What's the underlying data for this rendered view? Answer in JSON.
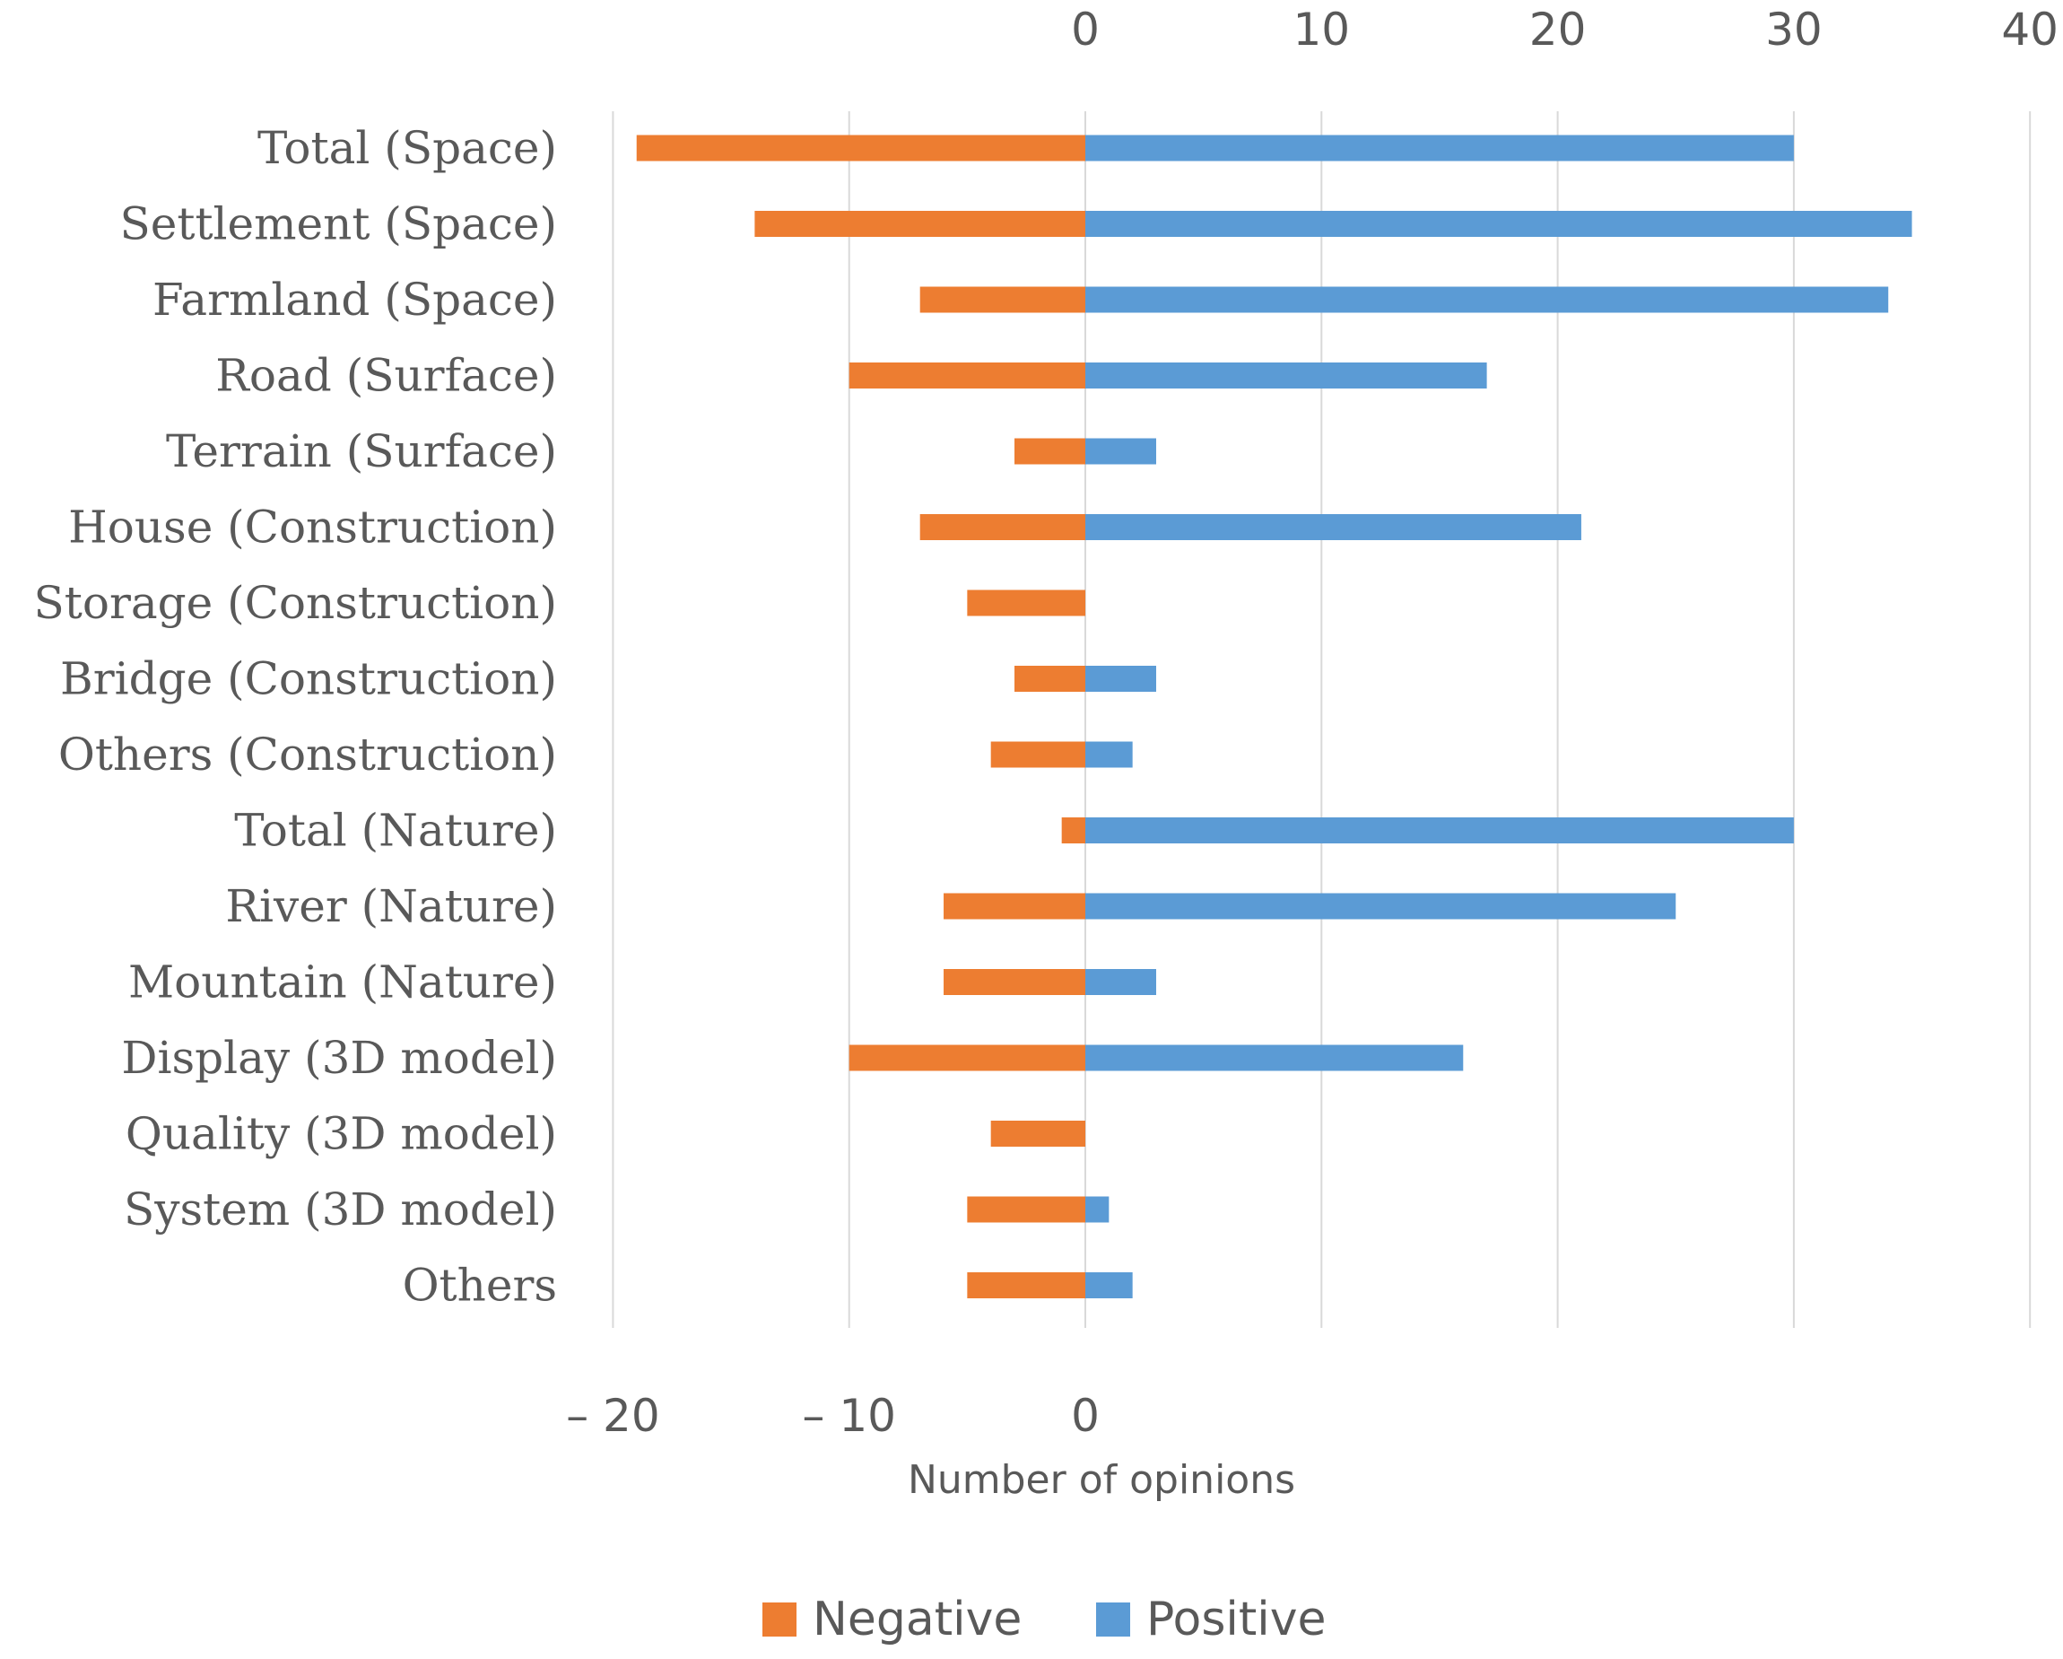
{
  "chart_data": {
    "type": "bar",
    "orientation": "horizontal",
    "stacked": "diverging",
    "title": "",
    "xlabel": "Number of opinions",
    "ylabel": "",
    "xlim": [
      -20,
      40
    ],
    "grid": true,
    "top_ticks": [
      "0",
      "10",
      "20",
      "30",
      "40"
    ],
    "top_tick_values": [
      0,
      10,
      20,
      30,
      40
    ],
    "bottom_ticks": [
      "– 20",
      "– 10",
      "0"
    ],
    "bottom_tick_values": [
      -20,
      -10,
      0
    ],
    "categories": [
      "Total (Space)",
      "Settlement (Space)",
      "Farmland (Space)",
      "Road (Surface)",
      "Terrain (Surface)",
      "House (Construction)",
      "Storage (Construction)",
      "Bridge (Construction)",
      "Others (Construction)",
      "Total (Nature)",
      "River (Nature)",
      "Mountain (Nature)",
      "Display (3D model)",
      "Quality (3D model)",
      "System (3D model)",
      "Others"
    ],
    "series": [
      {
        "name": "Negative",
        "color": "#ED7D31",
        "values": [
          -19,
          -14,
          -7,
          -10,
          -3,
          -7,
          -5,
          -3,
          -4,
          -1,
          -6,
          -6,
          -10,
          -4,
          -5,
          -5
        ]
      },
      {
        "name": "Positive",
        "color": "#5B9BD5",
        "values": [
          30,
          35,
          34,
          17,
          3,
          21,
          0,
          3,
          2,
          30,
          25,
          3,
          16,
          0,
          1,
          2
        ]
      }
    ],
    "legend": {
      "placement": "bottom",
      "labels": [
        "Negative",
        "Positive"
      ]
    }
  }
}
